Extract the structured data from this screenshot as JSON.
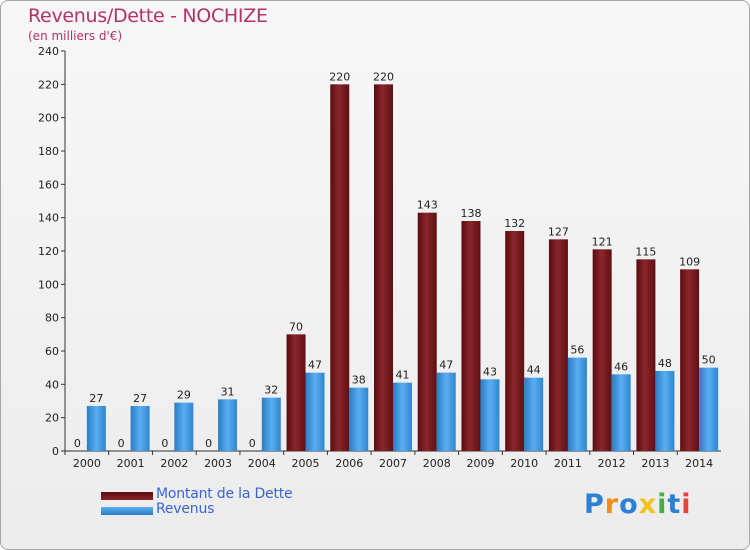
{
  "chart_data": {
    "type": "bar",
    "title": "Revenus/Dette - NOCHIZE",
    "subtitle": "(en milliers d'€)",
    "categories": [
      "2000",
      "2001",
      "2002",
      "2003",
      "2004",
      "2005",
      "2006",
      "2007",
      "2008",
      "2009",
      "2010",
      "2011",
      "2012",
      "2013",
      "2014"
    ],
    "series": [
      {
        "name": "Montant de la Dette",
        "color": "#7a1c22",
        "values": [
          0,
          0,
          0,
          0,
          0,
          70,
          220,
          220,
          143,
          138,
          132,
          127,
          121,
          115,
          109
        ]
      },
      {
        "name": "Revenus",
        "color": "#3f98df",
        "values": [
          27,
          27,
          29,
          31,
          32,
          47,
          38,
          41,
          47,
          43,
          44,
          56,
          46,
          48,
          50
        ]
      }
    ],
    "ylim": [
      0,
      240
    ],
    "yticks": [
      0,
      20,
      40,
      60,
      80,
      100,
      120,
      140,
      160,
      180,
      200,
      220,
      240
    ],
    "grid": "none",
    "legend_position": "bottom-left"
  },
  "logo": {
    "letters": [
      "P",
      "r",
      "o",
      "x",
      "i",
      "t",
      "i"
    ],
    "colors": [
      "#2a7fd6",
      "#f28c1e",
      "#2a7fd6",
      "#f2c21e",
      "#45b042",
      "#2a7fd6",
      "#e8433a"
    ]
  }
}
